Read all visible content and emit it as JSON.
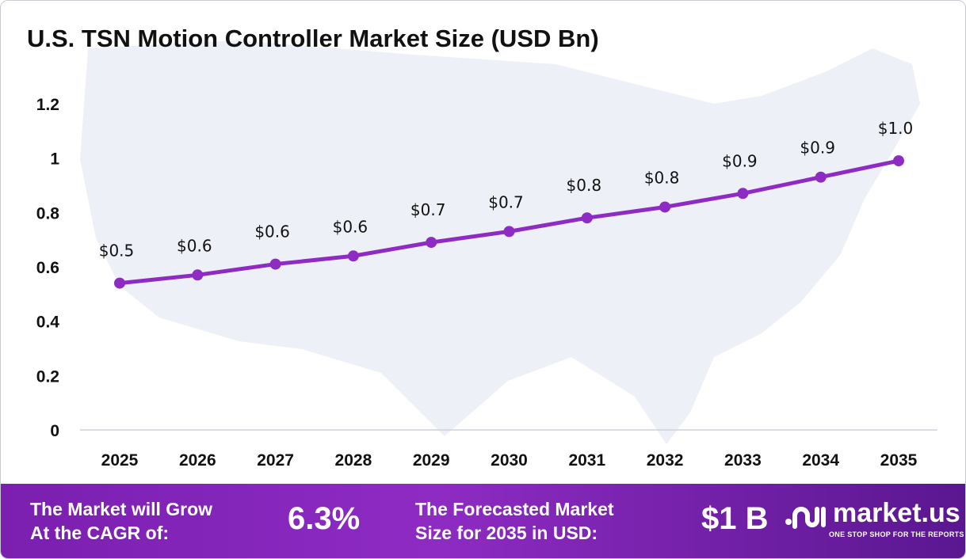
{
  "chart_data": {
    "type": "line",
    "title": "U.S. TSN Motion Controller Market Size (USD Bn)",
    "categories": [
      "2025",
      "2026",
      "2027",
      "2028",
      "2029",
      "2030",
      "2031",
      "2032",
      "2033",
      "2034",
      "2035"
    ],
    "values": [
      0.54,
      0.57,
      0.61,
      0.64,
      0.69,
      0.73,
      0.78,
      0.82,
      0.87,
      0.93,
      0.99
    ],
    "data_labels": [
      "$0.5",
      "$0.6",
      "$0.6",
      "$0.6",
      "$0.7",
      "$0.7",
      "$0.8",
      "$0.8",
      "$0.9",
      "$0.9",
      "$1.0"
    ],
    "y_ticks": [
      "0",
      "0.2",
      "0.4",
      "0.6",
      "0.8",
      "1",
      "1.2"
    ],
    "ylim": [
      0,
      1.2
    ],
    "grid": false,
    "xlabel": "",
    "ylabel": "",
    "colors": {
      "line": "#8e2bc3",
      "marker": "#8e2bc3",
      "background_map": "#eef0f8"
    }
  },
  "banner": {
    "cagr_label": "The Market will Grow At the CAGR of:",
    "cagr_label_line1": "The Market will Grow",
    "cagr_label_line2": "At the CAGR of:",
    "cagr_value": "6.3%",
    "forecast_label_line1": "The Forecasted Market",
    "forecast_label_line2": "Size for 2035 in USD:",
    "forecast_value": "$1 B",
    "logo_name": "market.us",
    "logo_tagline": "ONE STOP SHOP FOR THE REPORTS"
  }
}
